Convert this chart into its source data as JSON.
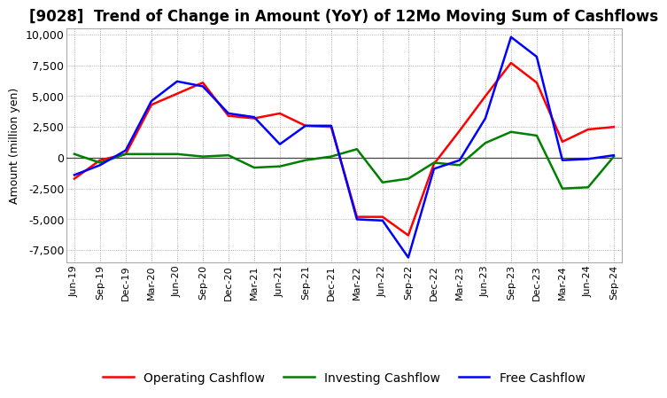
{
  "title": "[9028]  Trend of Change in Amount (YoY) of 12Mo Moving Sum of Cashflows",
  "ylabel": "Amount (million yen)",
  "x_labels": [
    "Jun-19",
    "Sep-19",
    "Dec-19",
    "Mar-20",
    "Jun-20",
    "Sep-20",
    "Dec-20",
    "Mar-21",
    "Jun-21",
    "Sep-21",
    "Dec-21",
    "Mar-22",
    "Jun-22",
    "Sep-22",
    "Dec-22",
    "Mar-23",
    "Jun-23",
    "Sep-23",
    "Dec-23",
    "Mar-24",
    "Jun-24",
    "Sep-24"
  ],
  "operating": [
    -1700,
    -200,
    300,
    4300,
    5200,
    6100,
    3400,
    3200,
    3600,
    2600,
    2500,
    -4800,
    -4800,
    -6300,
    -500,
    2200,
    5000,
    7700,
    6100,
    1300,
    2300,
    2500
  ],
  "investing": [
    300,
    -400,
    300,
    300,
    300,
    100,
    200,
    -800,
    -700,
    -200,
    100,
    700,
    -2000,
    -1700,
    -400,
    -600,
    1200,
    2100,
    1800,
    -2500,
    -2400,
    100
  ],
  "free": [
    -1400,
    -600,
    600,
    4600,
    6200,
    5800,
    3600,
    3300,
    1100,
    2600,
    2600,
    -5000,
    -5100,
    -8100,
    -900,
    -200,
    3200,
    9800,
    8200,
    -200,
    -100,
    200
  ],
  "ylim": [
    -8500,
    10500
  ],
  "yticks": [
    -7500,
    -5000,
    -2500,
    0,
    2500,
    5000,
    7500,
    10000
  ],
  "operating_color": "#ff0000",
  "investing_color": "#008000",
  "free_color": "#0000ff",
  "line_width": 1.8,
  "background_color": "#ffffff",
  "grid_color": "#999999",
  "title_fontsize": 12,
  "axis_fontsize": 9,
  "tick_fontsize": 8,
  "legend_fontsize": 10
}
